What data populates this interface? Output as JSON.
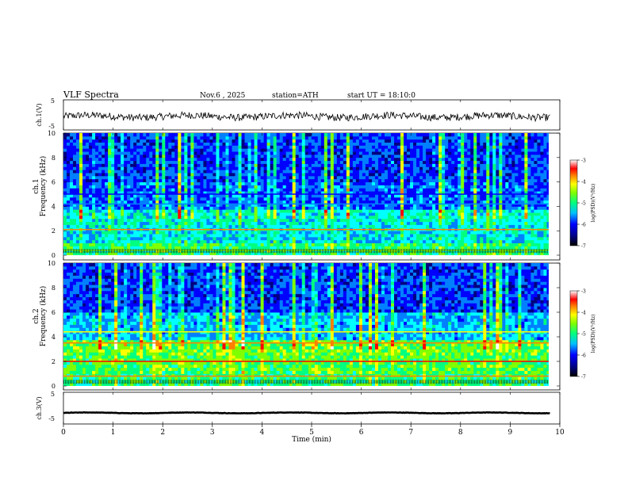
{
  "header": {
    "title": "VLF Spectra",
    "date": "Nov.6 , 2025",
    "station": "station=ATH",
    "start": "start UT = 18:10:0"
  },
  "colors": {
    "colormap": [
      "#000080",
      "#0000ff",
      "#0080ff",
      "#00ffff",
      "#00ff80",
      "#80ff00",
      "#ffff00",
      "#ff8000",
      "#ff0000",
      "#ffffff"
    ]
  },
  "chart_data": [
    {
      "type": "line",
      "panel": "ch1-waveform",
      "ylabel": "ch.1(V)",
      "ylim": [
        -5,
        5
      ],
      "yticks": [
        "5",
        "-5"
      ],
      "xlim": [
        0,
        9.8
      ],
      "description_values": {
        "mean_level": -0.5,
        "noise_amplitude": 1.2
      }
    },
    {
      "type": "heatmap",
      "panel": "ch1-spectrogram",
      "ylabel": "Frequency (kHz)",
      "channel_label": "ch.1",
      "ylim": [
        0,
        10
      ],
      "yticks": [
        "0",
        "2",
        "4",
        "6",
        "8",
        "10"
      ],
      "xlim": [
        0,
        9.8
      ],
      "colorbar": {
        "label": "log(PSD)(V²/Hz)",
        "range": [
          -7,
          -3
        ],
        "ticks": [
          "-3",
          "-4",
          "-5",
          "-6",
          "-7"
        ]
      },
      "features": [
        {
          "freq_khz": 2.1,
          "level": -4.0
        },
        {
          "freq_khz": 4.2,
          "level": -6.0
        },
        {
          "freq_khz": 5.0,
          "level": -6.5
        },
        {
          "freq_khz": 0.4,
          "level": -5.0
        }
      ]
    },
    {
      "type": "heatmap",
      "panel": "ch2-spectrogram",
      "ylabel": "Frequency (kHz)",
      "channel_label": "ch.2",
      "ylim": [
        0,
        10
      ],
      "yticks": [
        "0",
        "2",
        "4",
        "6",
        "8",
        "10"
      ],
      "xlim": [
        0,
        9.8
      ],
      "colorbar": {
        "label": "log(PSD)(V²/Hz)",
        "range": [
          -7,
          -3
        ],
        "ticks": [
          "-3",
          "-4",
          "-5",
          "-6",
          "-7"
        ]
      },
      "features": [
        {
          "freq_khz": 2.0,
          "level": -3.5
        },
        {
          "freq_khz": 3.5,
          "level": -4.0
        },
        {
          "freq_khz": 4.4,
          "level": -4.5
        },
        {
          "freq_khz": 0.8,
          "level": -4.0
        }
      ]
    },
    {
      "type": "line",
      "panel": "ch3-waveform",
      "ylabel": "ch.3(V)",
      "ylim": [
        -5,
        5
      ],
      "yticks": [
        "5",
        "-5"
      ],
      "xlim": [
        0,
        9.8
      ],
      "description_values": {
        "mean_level": -1.5,
        "noise_amplitude": 0.2
      }
    }
  ],
  "xaxis": {
    "label": "Time (min)",
    "range": [
      0,
      10
    ],
    "ticks": [
      "0",
      "1",
      "2",
      "3",
      "4",
      "5",
      "6",
      "7",
      "8",
      "9",
      "10"
    ]
  }
}
